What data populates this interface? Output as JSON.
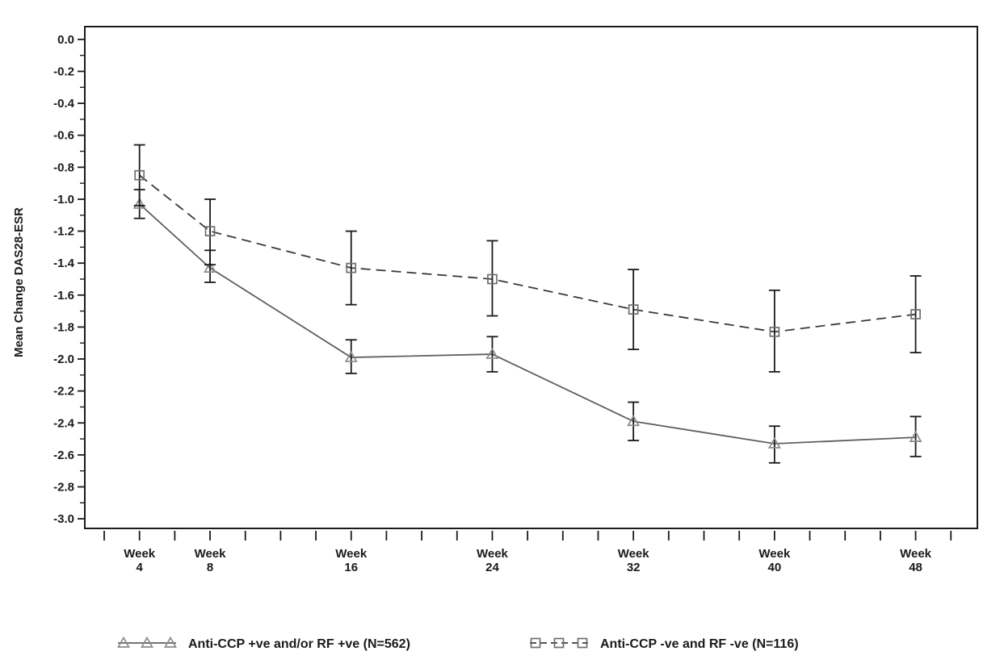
{
  "chart_data": {
    "type": "line",
    "title": "",
    "xlabel": "",
    "ylabel": "Mean Change DAS28-ESR",
    "xlim": [
      0.9,
      51.5
    ],
    "ylim": [
      -3.06,
      0.08
    ],
    "grid": false,
    "legend_position": "bottom",
    "y_tick_labels": [
      "0.0",
      "-0.2",
      "-0.4",
      "-0.6",
      "-0.8",
      "-1.0",
      "-1.2",
      "-1.4",
      "-1.6",
      "-1.8",
      "-2.0",
      "-2.2",
      "-2.4",
      "-2.6",
      "-2.8",
      "-3.0"
    ],
    "y_major_step": 0.2,
    "y_minor_step": 0.1,
    "x_minor_ticks": {
      "start": 2,
      "step": 2,
      "end": 50
    },
    "x_label_word": "Week",
    "x_label_weeks": [
      "4",
      "8",
      "16",
      "24",
      "32",
      "40",
      "48"
    ],
    "x": [
      4,
      8,
      16,
      24,
      32,
      40,
      48
    ],
    "series": [
      {
        "name": "Anti-CCP +ve and/or RF +ve (N=562)",
        "marker": "triangle",
        "line_style": "solid",
        "line_color": "#5f5f5f",
        "marker_color": "#8a8a8a",
        "values": [
          -1.03,
          -1.43,
          -1.99,
          -1.97,
          -2.39,
          -2.53,
          -2.49
        ],
        "err_high": [
          -0.94,
          -1.32,
          -1.88,
          -1.86,
          -2.27,
          -2.42,
          -2.36
        ],
        "err_low": [
          -1.12,
          -1.52,
          -2.09,
          -2.08,
          -2.51,
          -2.65,
          -2.61
        ]
      },
      {
        "name": "Anti-CCP -ve and RF -ve (N=116)",
        "marker": "square",
        "line_style": "dashed",
        "line_color": "#3a3a3a",
        "marker_color": "#6f6f6f",
        "values": [
          -0.85,
          -1.2,
          -1.43,
          -1.5,
          -1.69,
          -1.83,
          -1.72
        ],
        "err_high": [
          -0.66,
          -1.0,
          -1.2,
          -1.26,
          -1.44,
          -1.57,
          -1.48
        ],
        "err_low": [
          -1.04,
          -1.41,
          -1.66,
          -1.73,
          -1.94,
          -2.08,
          -1.96
        ]
      }
    ],
    "legend": [
      {
        "label": "Anti-CCP +ve and/or RF +ve (N=562)",
        "marker": "triangle",
        "line_style": "solid"
      },
      {
        "label": "Anti-CCP -ve and RF -ve (N=116)",
        "marker": "square",
        "line_style": "dashed"
      }
    ],
    "axis_color": "#1a1a1a",
    "error_bar_color": "#1a1a1a"
  }
}
